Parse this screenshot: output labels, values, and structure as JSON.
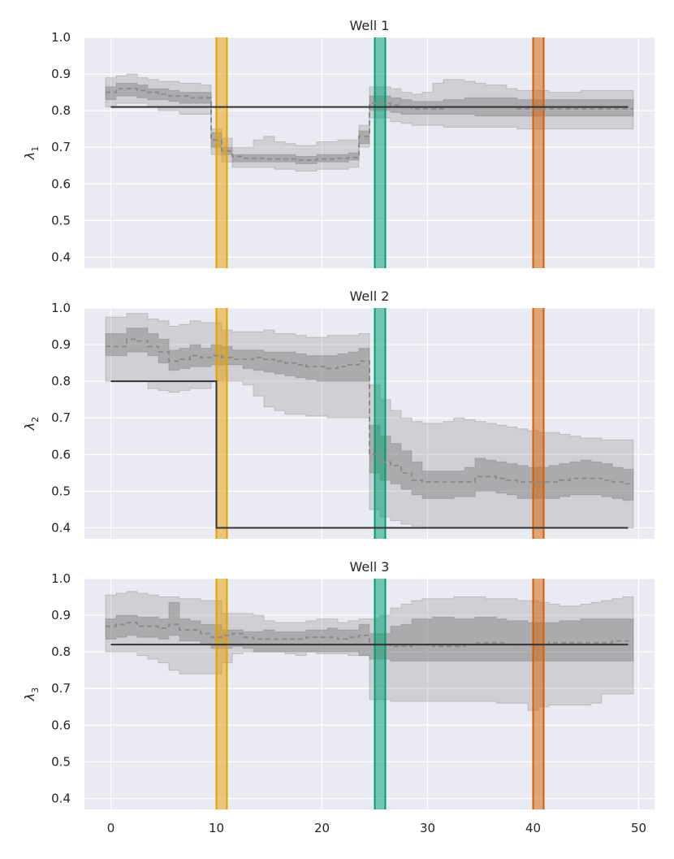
{
  "chart_data": [
    {
      "type": "line",
      "title": "Well 1",
      "ylabel_symbol": "λ",
      "ylabel_subscript": "1",
      "xlim": [
        -2.5,
        51.5
      ],
      "ylim": [
        0.37,
        1.0
      ],
      "xticks": [
        0,
        10,
        20,
        30,
        40,
        50
      ],
      "yticks": [
        "0.4",
        "0.5",
        "0.6",
        "0.7",
        "0.8",
        "0.9",
        "1.0"
      ],
      "show_xticklabels": false,
      "true_value": [
        {
          "x_start": 0,
          "x_end": 49,
          "y": 0.81
        }
      ],
      "posterior_median": {
        "x": [
          0,
          1,
          2,
          3,
          4,
          5,
          6,
          7,
          8,
          9,
          10,
          11,
          12,
          13,
          14,
          15,
          16,
          17,
          18,
          19,
          20,
          21,
          22,
          23,
          24,
          25,
          26,
          27,
          28,
          29,
          30,
          31,
          32,
          33,
          34,
          35,
          36,
          37,
          38,
          39,
          40,
          41,
          42,
          43,
          44,
          45,
          46,
          47,
          48,
          49
        ],
        "y": [
          0.85,
          0.86,
          0.86,
          0.855,
          0.85,
          0.845,
          0.84,
          0.84,
          0.835,
          0.835,
          0.72,
          0.69,
          0.675,
          0.67,
          0.67,
          0.668,
          0.668,
          0.668,
          0.665,
          0.665,
          0.668,
          0.668,
          0.67,
          0.672,
          0.73,
          0.82,
          0.82,
          0.815,
          0.81,
          0.805,
          0.805,
          0.805,
          0.81,
          0.81,
          0.81,
          0.81,
          0.81,
          0.81,
          0.81,
          0.805,
          0.805,
          0.805,
          0.805,
          0.805,
          0.805,
          0.805,
          0.805,
          0.805,
          0.805,
          0.805
        ]
      },
      "band_50": {
        "low": [
          0.83,
          0.84,
          0.84,
          0.835,
          0.83,
          0.83,
          0.825,
          0.82,
          0.82,
          0.82,
          0.7,
          0.68,
          0.66,
          0.66,
          0.66,
          0.66,
          0.66,
          0.66,
          0.655,
          0.655,
          0.66,
          0.66,
          0.66,
          0.665,
          0.71,
          0.8,
          0.8,
          0.795,
          0.79,
          0.79,
          0.79,
          0.79,
          0.79,
          0.79,
          0.79,
          0.785,
          0.785,
          0.785,
          0.785,
          0.785,
          0.785,
          0.785,
          0.785,
          0.785,
          0.785,
          0.785,
          0.785,
          0.785,
          0.785,
          0.785
        ],
        "high": [
          0.865,
          0.875,
          0.875,
          0.87,
          0.86,
          0.86,
          0.855,
          0.85,
          0.85,
          0.85,
          0.74,
          0.7,
          0.68,
          0.68,
          0.68,
          0.68,
          0.68,
          0.68,
          0.675,
          0.675,
          0.68,
          0.68,
          0.68,
          0.685,
          0.745,
          0.84,
          0.84,
          0.835,
          0.83,
          0.825,
          0.825,
          0.825,
          0.83,
          0.83,
          0.835,
          0.835,
          0.835,
          0.835,
          0.835,
          0.83,
          0.83,
          0.83,
          0.83,
          0.83,
          0.83,
          0.83,
          0.83,
          0.83,
          0.83,
          0.83
        ]
      },
      "band_90": {
        "low": [
          0.81,
          0.82,
          0.82,
          0.82,
          0.81,
          0.8,
          0.8,
          0.79,
          0.79,
          0.79,
          0.68,
          0.66,
          0.645,
          0.645,
          0.645,
          0.645,
          0.64,
          0.64,
          0.635,
          0.635,
          0.64,
          0.64,
          0.64,
          0.645,
          0.7,
          0.78,
          0.78,
          0.77,
          0.765,
          0.76,
          0.76,
          0.76,
          0.755,
          0.755,
          0.755,
          0.755,
          0.755,
          0.755,
          0.755,
          0.75,
          0.75,
          0.75,
          0.75,
          0.75,
          0.75,
          0.75,
          0.75,
          0.75,
          0.75,
          0.75
        ],
        "high": [
          0.89,
          0.895,
          0.9,
          0.89,
          0.885,
          0.88,
          0.88,
          0.875,
          0.875,
          0.87,
          0.75,
          0.725,
          0.7,
          0.7,
          0.72,
          0.73,
          0.715,
          0.71,
          0.705,
          0.705,
          0.715,
          0.715,
          0.72,
          0.72,
          0.76,
          0.865,
          0.865,
          0.86,
          0.85,
          0.845,
          0.85,
          0.875,
          0.885,
          0.885,
          0.88,
          0.875,
          0.87,
          0.87,
          0.86,
          0.855,
          0.855,
          0.855,
          0.85,
          0.85,
          0.85,
          0.855,
          0.855,
          0.855,
          0.855,
          0.855
        ]
      }
    },
    {
      "type": "line",
      "title": "Well 2",
      "ylabel_symbol": "λ",
      "ylabel_subscript": "2",
      "xlim": [
        -2.5,
        51.5
      ],
      "ylim": [
        0.37,
        1.0
      ],
      "xticks": [
        0,
        10,
        20,
        30,
        40,
        50
      ],
      "yticks": [
        "0.4",
        "0.5",
        "0.6",
        "0.7",
        "0.8",
        "0.9",
        "1.0"
      ],
      "show_xticklabels": false,
      "true_value": [
        {
          "x_start": 0,
          "x_end": 10,
          "y": 0.8
        },
        {
          "x_start": 10,
          "x_end": 49,
          "y": 0.4
        }
      ],
      "posterior_median": {
        "x": [
          0,
          1,
          2,
          3,
          4,
          5,
          6,
          7,
          8,
          9,
          10,
          11,
          12,
          13,
          14,
          15,
          16,
          17,
          18,
          19,
          20,
          21,
          22,
          23,
          24,
          25,
          26,
          27,
          28,
          29,
          30,
          31,
          32,
          33,
          34,
          35,
          36,
          37,
          38,
          39,
          40,
          41,
          42,
          43,
          44,
          45,
          46,
          47,
          48,
          49
        ],
        "y": [
          0.895,
          0.895,
          0.915,
          0.91,
          0.895,
          0.88,
          0.855,
          0.86,
          0.87,
          0.865,
          0.87,
          0.865,
          0.86,
          0.86,
          0.865,
          0.86,
          0.855,
          0.85,
          0.845,
          0.84,
          0.84,
          0.835,
          0.84,
          0.845,
          0.855,
          0.6,
          0.58,
          0.57,
          0.55,
          0.53,
          0.525,
          0.525,
          0.525,
          0.525,
          0.525,
          0.54,
          0.54,
          0.535,
          0.53,
          0.525,
          0.525,
          0.525,
          0.525,
          0.53,
          0.535,
          0.535,
          0.535,
          0.53,
          0.525,
          0.52
        ]
      },
      "band_50": {
        "low": [
          0.87,
          0.87,
          0.88,
          0.88,
          0.87,
          0.85,
          0.83,
          0.835,
          0.84,
          0.84,
          0.845,
          0.845,
          0.845,
          0.835,
          0.83,
          0.825,
          0.82,
          0.815,
          0.81,
          0.805,
          0.8,
          0.8,
          0.8,
          0.8,
          0.8,
          0.55,
          0.53,
          0.52,
          0.505,
          0.49,
          0.48,
          0.48,
          0.48,
          0.485,
          0.485,
          0.5,
          0.5,
          0.495,
          0.49,
          0.48,
          0.48,
          0.48,
          0.48,
          0.485,
          0.49,
          0.49,
          0.49,
          0.485,
          0.48,
          0.475
        ],
        "high": [
          0.93,
          0.93,
          0.945,
          0.945,
          0.93,
          0.915,
          0.885,
          0.89,
          0.9,
          0.89,
          0.9,
          0.895,
          0.885,
          0.885,
          0.885,
          0.88,
          0.88,
          0.88,
          0.875,
          0.87,
          0.87,
          0.87,
          0.875,
          0.88,
          0.89,
          0.68,
          0.65,
          0.63,
          0.61,
          0.58,
          0.555,
          0.555,
          0.555,
          0.555,
          0.565,
          0.59,
          0.585,
          0.58,
          0.575,
          0.57,
          0.565,
          0.565,
          0.57,
          0.575,
          0.58,
          0.585,
          0.58,
          0.575,
          0.565,
          0.56
        ]
      },
      "band_90": {
        "low": [
          0.8,
          0.8,
          0.8,
          0.8,
          0.78,
          0.775,
          0.77,
          0.775,
          0.78,
          0.78,
          0.8,
          0.8,
          0.8,
          0.79,
          0.76,
          0.73,
          0.72,
          0.71,
          0.71,
          0.705,
          0.705,
          0.7,
          0.7,
          0.7,
          0.7,
          0.45,
          0.43,
          0.42,
          0.41,
          0.405,
          0.4,
          0.4,
          0.4,
          0.4,
          0.4,
          0.4,
          0.4,
          0.4,
          0.4,
          0.4,
          0.4,
          0.4,
          0.4,
          0.4,
          0.4,
          0.4,
          0.4,
          0.4,
          0.4,
          0.4
        ],
        "high": [
          0.975,
          0.975,
          0.985,
          0.985,
          0.97,
          0.965,
          0.95,
          0.955,
          0.965,
          0.96,
          0.96,
          0.94,
          0.935,
          0.935,
          0.935,
          0.94,
          0.93,
          0.93,
          0.925,
          0.92,
          0.92,
          0.925,
          0.925,
          0.925,
          0.93,
          0.79,
          0.75,
          0.72,
          0.7,
          0.69,
          0.685,
          0.685,
          0.69,
          0.7,
          0.695,
          0.69,
          0.685,
          0.68,
          0.675,
          0.67,
          0.665,
          0.66,
          0.66,
          0.655,
          0.65,
          0.645,
          0.645,
          0.64,
          0.64,
          0.64
        ]
      }
    },
    {
      "type": "line",
      "title": "Well 3",
      "ylabel_symbol": "λ",
      "ylabel_subscript": "3",
      "xlim": [
        -2.5,
        51.5
      ],
      "ylim": [
        0.37,
        1.0
      ],
      "xticks": [
        0,
        10,
        20,
        30,
        40,
        50
      ],
      "yticks": [
        "0.4",
        "0.5",
        "0.6",
        "0.7",
        "0.8",
        "0.9",
        "1.0"
      ],
      "show_xticklabels": true,
      "true_value": [
        {
          "x_start": 0,
          "x_end": 49,
          "y": 0.82
        }
      ],
      "posterior_median": {
        "x": [
          0,
          1,
          2,
          3,
          4,
          5,
          6,
          7,
          8,
          9,
          10,
          11,
          12,
          13,
          14,
          15,
          16,
          17,
          18,
          19,
          20,
          21,
          22,
          23,
          24,
          25,
          26,
          27,
          28,
          29,
          30,
          31,
          32,
          33,
          34,
          35,
          36,
          37,
          38,
          39,
          40,
          41,
          42,
          43,
          44,
          45,
          46,
          47,
          48,
          49
        ],
        "y": [
          0.87,
          0.875,
          0.88,
          0.87,
          0.87,
          0.865,
          0.875,
          0.86,
          0.86,
          0.85,
          0.84,
          0.845,
          0.85,
          0.84,
          0.835,
          0.835,
          0.835,
          0.835,
          0.835,
          0.84,
          0.84,
          0.84,
          0.835,
          0.84,
          0.845,
          0.82,
          0.82,
          0.815,
          0.815,
          0.82,
          0.82,
          0.815,
          0.815,
          0.815,
          0.82,
          0.825,
          0.825,
          0.825,
          0.82,
          0.82,
          0.82,
          0.82,
          0.825,
          0.825,
          0.825,
          0.825,
          0.825,
          0.825,
          0.83,
          0.83
        ]
      },
      "band_50": {
        "low": [
          0.835,
          0.84,
          0.845,
          0.84,
          0.84,
          0.835,
          0.845,
          0.83,
          0.83,
          0.82,
          0.81,
          0.81,
          0.815,
          0.81,
          0.8,
          0.8,
          0.8,
          0.8,
          0.8,
          0.8,
          0.8,
          0.8,
          0.8,
          0.8,
          0.79,
          0.78,
          0.78,
          0.775,
          0.775,
          0.775,
          0.775,
          0.775,
          0.775,
          0.775,
          0.775,
          0.775,
          0.775,
          0.775,
          0.775,
          0.775,
          0.775,
          0.775,
          0.775,
          0.775,
          0.775,
          0.775,
          0.775,
          0.775,
          0.775,
          0.775
        ],
        "high": [
          0.89,
          0.9,
          0.9,
          0.895,
          0.895,
          0.89,
          0.935,
          0.89,
          0.885,
          0.875,
          0.875,
          0.86,
          0.86,
          0.855,
          0.855,
          0.86,
          0.855,
          0.855,
          0.855,
          0.86,
          0.86,
          0.865,
          0.86,
          0.86,
          0.875,
          0.85,
          0.85,
          0.87,
          0.875,
          0.89,
          0.89,
          0.895,
          0.895,
          0.89,
          0.89,
          0.895,
          0.895,
          0.89,
          0.885,
          0.885,
          0.88,
          0.88,
          0.88,
          0.885,
          0.885,
          0.89,
          0.89,
          0.89,
          0.89,
          0.89
        ]
      },
      "band_90": {
        "low": [
          0.8,
          0.8,
          0.8,
          0.79,
          0.78,
          0.77,
          0.75,
          0.74,
          0.74,
          0.74,
          0.74,
          0.77,
          0.795,
          0.8,
          0.8,
          0.8,
          0.8,
          0.795,
          0.79,
          0.8,
          0.795,
          0.795,
          0.795,
          0.79,
          0.79,
          0.67,
          0.67,
          0.665,
          0.665,
          0.665,
          0.665,
          0.665,
          0.665,
          0.665,
          0.665,
          0.665,
          0.665,
          0.66,
          0.66,
          0.66,
          0.64,
          0.65,
          0.655,
          0.655,
          0.655,
          0.655,
          0.66,
          0.685,
          0.685,
          0.685
        ],
        "high": [
          0.955,
          0.96,
          0.965,
          0.96,
          0.955,
          0.95,
          0.95,
          0.945,
          0.945,
          0.94,
          0.94,
          0.905,
          0.905,
          0.905,
          0.9,
          0.885,
          0.88,
          0.88,
          0.88,
          0.885,
          0.89,
          0.89,
          0.88,
          0.885,
          0.89,
          0.89,
          0.9,
          0.92,
          0.93,
          0.94,
          0.945,
          0.945,
          0.945,
          0.95,
          0.95,
          0.95,
          0.945,
          0.945,
          0.945,
          0.94,
          0.94,
          0.935,
          0.93,
          0.925,
          0.925,
          0.93,
          0.935,
          0.94,
          0.945,
          0.95
        ]
      }
    }
  ],
  "change_points": [
    {
      "name": "orange",
      "x_start": 10,
      "x_end": 11,
      "color": "#E69F00"
    },
    {
      "name": "green",
      "x_start": 25,
      "x_end": 26,
      "color": "#009E73"
    },
    {
      "name": "vermillion",
      "x_start": 40,
      "x_end": 41,
      "color": "#D55E00"
    }
  ],
  "colors": {
    "axes_bg": "#EAEAF2",
    "grid": "#FFFFFF",
    "band": "#7f7f7f",
    "median": "#8c8c8c",
    "truth": "#333333"
  }
}
